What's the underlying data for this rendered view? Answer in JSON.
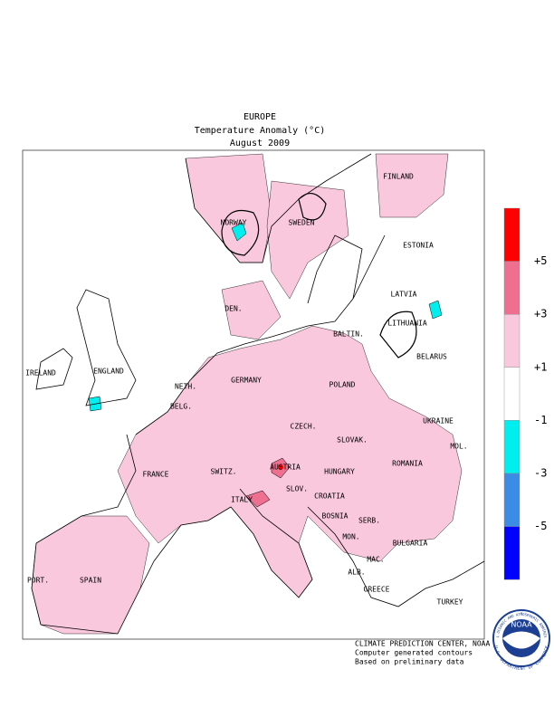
{
  "header": {
    "region": "EUROPE",
    "title": "Temperature Anomaly (°C)",
    "period": "August 2009"
  },
  "labels": [
    "FINLAND",
    "NORWAY",
    "SWEDEN",
    "ESTONIA",
    "LATVIA",
    "DEN.",
    "LITHUANIA",
    "BALTIN.",
    "BELARUS",
    "IRELAND",
    "ENGLAND",
    "NETH.",
    "GERMANY",
    "POLAND",
    "BELG.",
    "UKRAINE",
    "CZECH.",
    "SLOVAK.",
    "MOL.",
    "FRANCE",
    "SWITZ.",
    "AUSTRIA",
    "HUNGARY",
    "ROMANIA",
    "ITALY",
    "SLOV.",
    "CROATIA",
    "BOSNIA",
    "SERB.",
    "MON.",
    "BULGARIA",
    "MAC.",
    "PORT.",
    "SPAIN",
    "ALB.",
    "GREECE",
    "TURKEY"
  ],
  "legend": {
    "colors": [
      "#ff0000",
      "#ee6f90",
      "#f9c8dc",
      "#ffffff",
      "#00eeee",
      "#3c8ce6",
      "#0000ff"
    ],
    "labels": [
      "+5",
      "+3",
      "+1",
      "-1",
      "-3",
      "-5"
    ]
  },
  "credits": [
    "CLIMATE PREDICTION CENTER, NOAA",
    "Computer generated contours",
    "Based on preliminary data"
  ],
  "logo": {
    "name": "NOAA",
    "ring_top": "NATIONAL OCEANIC AND ATMOSPHERIC ADMINISTRATION",
    "ring_bottom": "U.S. DEPARTMENT OF COMMERCE"
  }
}
